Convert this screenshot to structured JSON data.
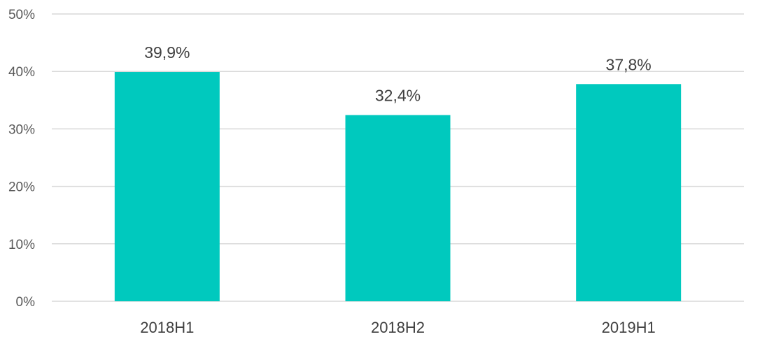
{
  "chart_data": {
    "type": "bar",
    "categories": [
      "2018H1",
      "2018H2",
      "2019H1"
    ],
    "values": [
      39.9,
      32.4,
      37.8
    ],
    "value_labels": [
      "39,9%",
      "32,4%",
      "37,8%"
    ],
    "y_ticks": [
      0,
      10,
      20,
      30,
      40,
      50
    ],
    "y_tick_labels": [
      "0%",
      "10%",
      "20%",
      "30%",
      "40%",
      "50%"
    ],
    "ylim": [
      0,
      50
    ],
    "title": "",
    "xlabel": "",
    "ylabel": "",
    "grid": true,
    "colors": {
      "bar": "#00C9BE",
      "grid": "#D9D9D9",
      "tick_text": "#595959",
      "label_text": "#404040"
    }
  }
}
